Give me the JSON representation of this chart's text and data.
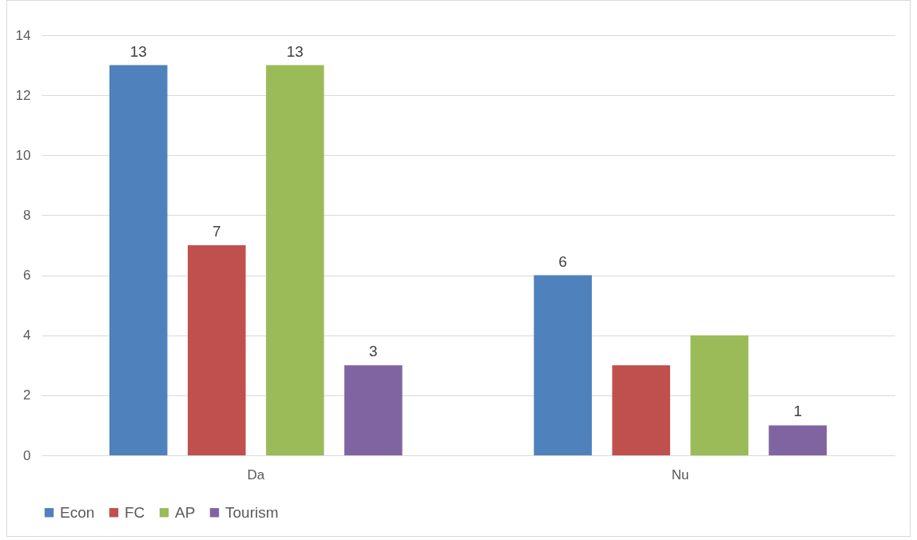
{
  "chart_data": {
    "type": "bar",
    "categories": [
      "Da",
      "Nu"
    ],
    "series": [
      {
        "name": "Econ",
        "color": "#4f81bd",
        "values": [
          13,
          6
        ],
        "value_labels": [
          "13",
          "6"
        ]
      },
      {
        "name": "FC",
        "color": "#c0504d",
        "values": [
          7,
          3
        ],
        "value_labels": [
          "7",
          null
        ]
      },
      {
        "name": "AP",
        "color": "#9bbb59",
        "values": [
          13,
          4
        ],
        "value_labels": [
          "13",
          null
        ]
      },
      {
        "name": "Tourism",
        "color": "#8064a2",
        "values": [
          3,
          1
        ],
        "value_labels": [
          "3",
          "1"
        ]
      }
    ],
    "ylim": [
      0,
      14
    ],
    "yticks": [
      0,
      2,
      4,
      6,
      8,
      10,
      12,
      14
    ],
    "grid": "y",
    "legend": "bottom"
  }
}
